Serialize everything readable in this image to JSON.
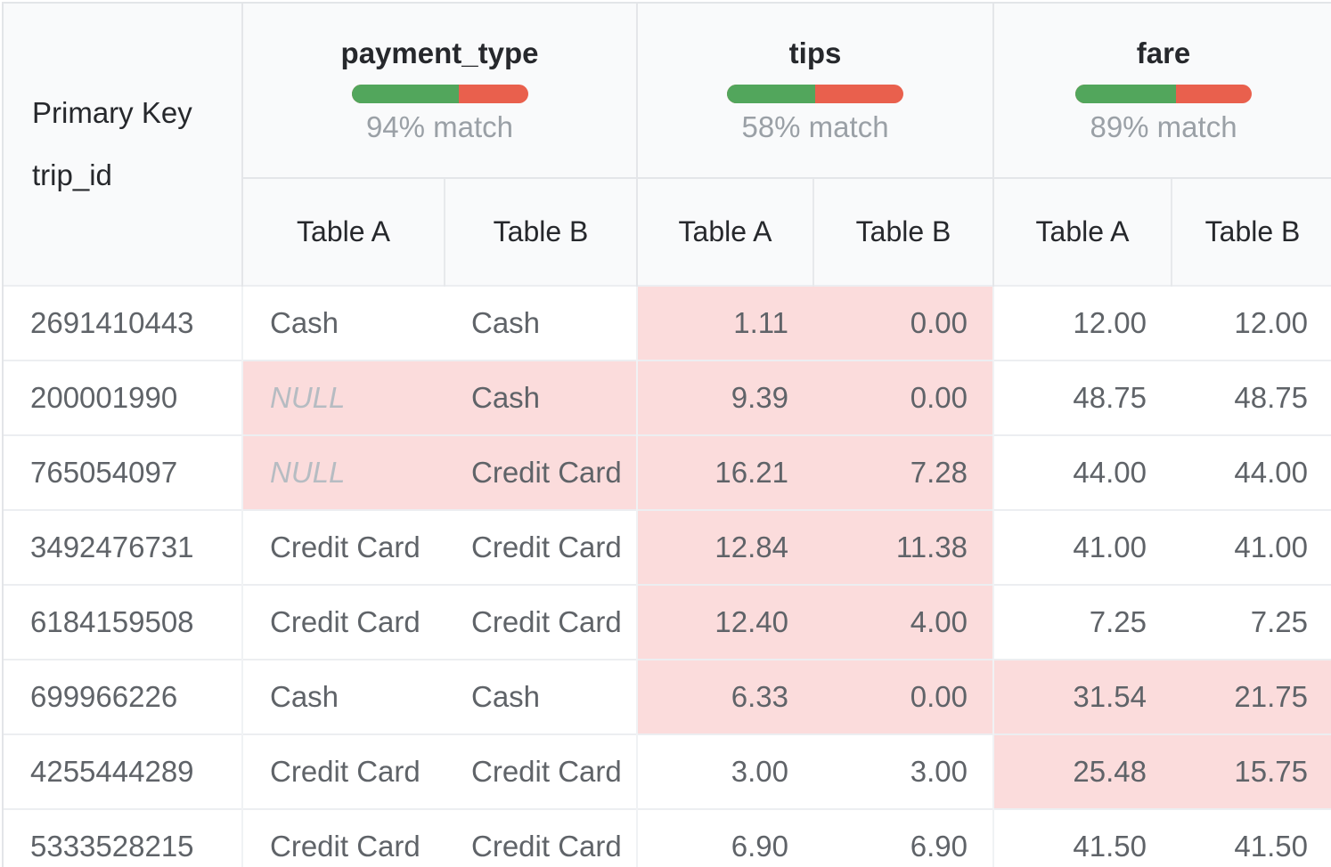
{
  "table": {
    "primary_key": {
      "label": "Primary Key",
      "field": "trip_id"
    },
    "null_display": "NULL",
    "column_groups": [
      {
        "key": "payment_type",
        "name": "payment_type",
        "match_label": "94% match",
        "match_percent": 94,
        "bar_green_percent": 61,
        "col_a": "Table A",
        "col_b": "Table B",
        "align": "left"
      },
      {
        "key": "tips",
        "name": "tips",
        "match_label": "58% match",
        "match_percent": 58,
        "bar_green_percent": 50,
        "col_a": "Table A",
        "col_b": "Table B",
        "align": "right"
      },
      {
        "key": "fare",
        "name": "fare",
        "match_label": "89% match",
        "match_percent": 89,
        "bar_green_percent": 57,
        "col_a": "Table A",
        "col_b": "Table B",
        "align": "right"
      }
    ],
    "rows": [
      {
        "trip_id": "2691410443",
        "payment_type": {
          "a": "Cash",
          "b": "Cash",
          "mismatch": false
        },
        "tips": {
          "a": "1.11",
          "b": "0.00",
          "mismatch": true
        },
        "fare": {
          "a": "12.00",
          "b": "12.00",
          "mismatch": false
        }
      },
      {
        "trip_id": "200001990",
        "payment_type": {
          "a": "NULL",
          "b": "Cash",
          "mismatch": true
        },
        "tips": {
          "a": "9.39",
          "b": "0.00",
          "mismatch": true
        },
        "fare": {
          "a": "48.75",
          "b": "48.75",
          "mismatch": false
        }
      },
      {
        "trip_id": "765054097",
        "payment_type": {
          "a": "NULL",
          "b": "Credit Card",
          "mismatch": true
        },
        "tips": {
          "a": "16.21",
          "b": "7.28",
          "mismatch": true
        },
        "fare": {
          "a": "44.00",
          "b": "44.00",
          "mismatch": false
        }
      },
      {
        "trip_id": "3492476731",
        "payment_type": {
          "a": "Credit Card",
          "b": "Credit Card",
          "mismatch": false
        },
        "tips": {
          "a": "12.84",
          "b": "11.38",
          "mismatch": true
        },
        "fare": {
          "a": "41.00",
          "b": "41.00",
          "mismatch": false
        }
      },
      {
        "trip_id": "6184159508",
        "payment_type": {
          "a": "Credit Card",
          "b": "Credit Card",
          "mismatch": false
        },
        "tips": {
          "a": "12.40",
          "b": "4.00",
          "mismatch": true
        },
        "fare": {
          "a": "7.25",
          "b": "7.25",
          "mismatch": false
        }
      },
      {
        "trip_id": "699966226",
        "payment_type": {
          "a": "Cash",
          "b": "Cash",
          "mismatch": false
        },
        "tips": {
          "a": "6.33",
          "b": "0.00",
          "mismatch": true
        },
        "fare": {
          "a": "31.54",
          "b": "21.75",
          "mismatch": true
        }
      },
      {
        "trip_id": "4255444289",
        "payment_type": {
          "a": "Credit Card",
          "b": "Credit Card",
          "mismatch": false
        },
        "tips": {
          "a": "3.00",
          "b": "3.00",
          "mismatch": false
        },
        "fare": {
          "a": "25.48",
          "b": "15.75",
          "mismatch": true
        }
      },
      {
        "trip_id": "5333528215",
        "payment_type": {
          "a": "Credit Card",
          "b": "Credit Card",
          "mismatch": false
        },
        "tips": {
          "a": "6.90",
          "b": "6.90",
          "mismatch": false
        },
        "fare": {
          "a": "41.50",
          "b": "41.50",
          "mismatch": false
        }
      }
    ]
  },
  "colors": {
    "header_bg": "#f9fafb",
    "mismatch_bg": "#fbdcdc",
    "bar_green": "#52a65c",
    "bar_red": "#e9604d",
    "match_text": "#9aa0a6",
    "data_text": "#5f6368",
    "header_text": "#26282c",
    "null_text": "#b6bcc2",
    "border": "#e4e6e9"
  }
}
